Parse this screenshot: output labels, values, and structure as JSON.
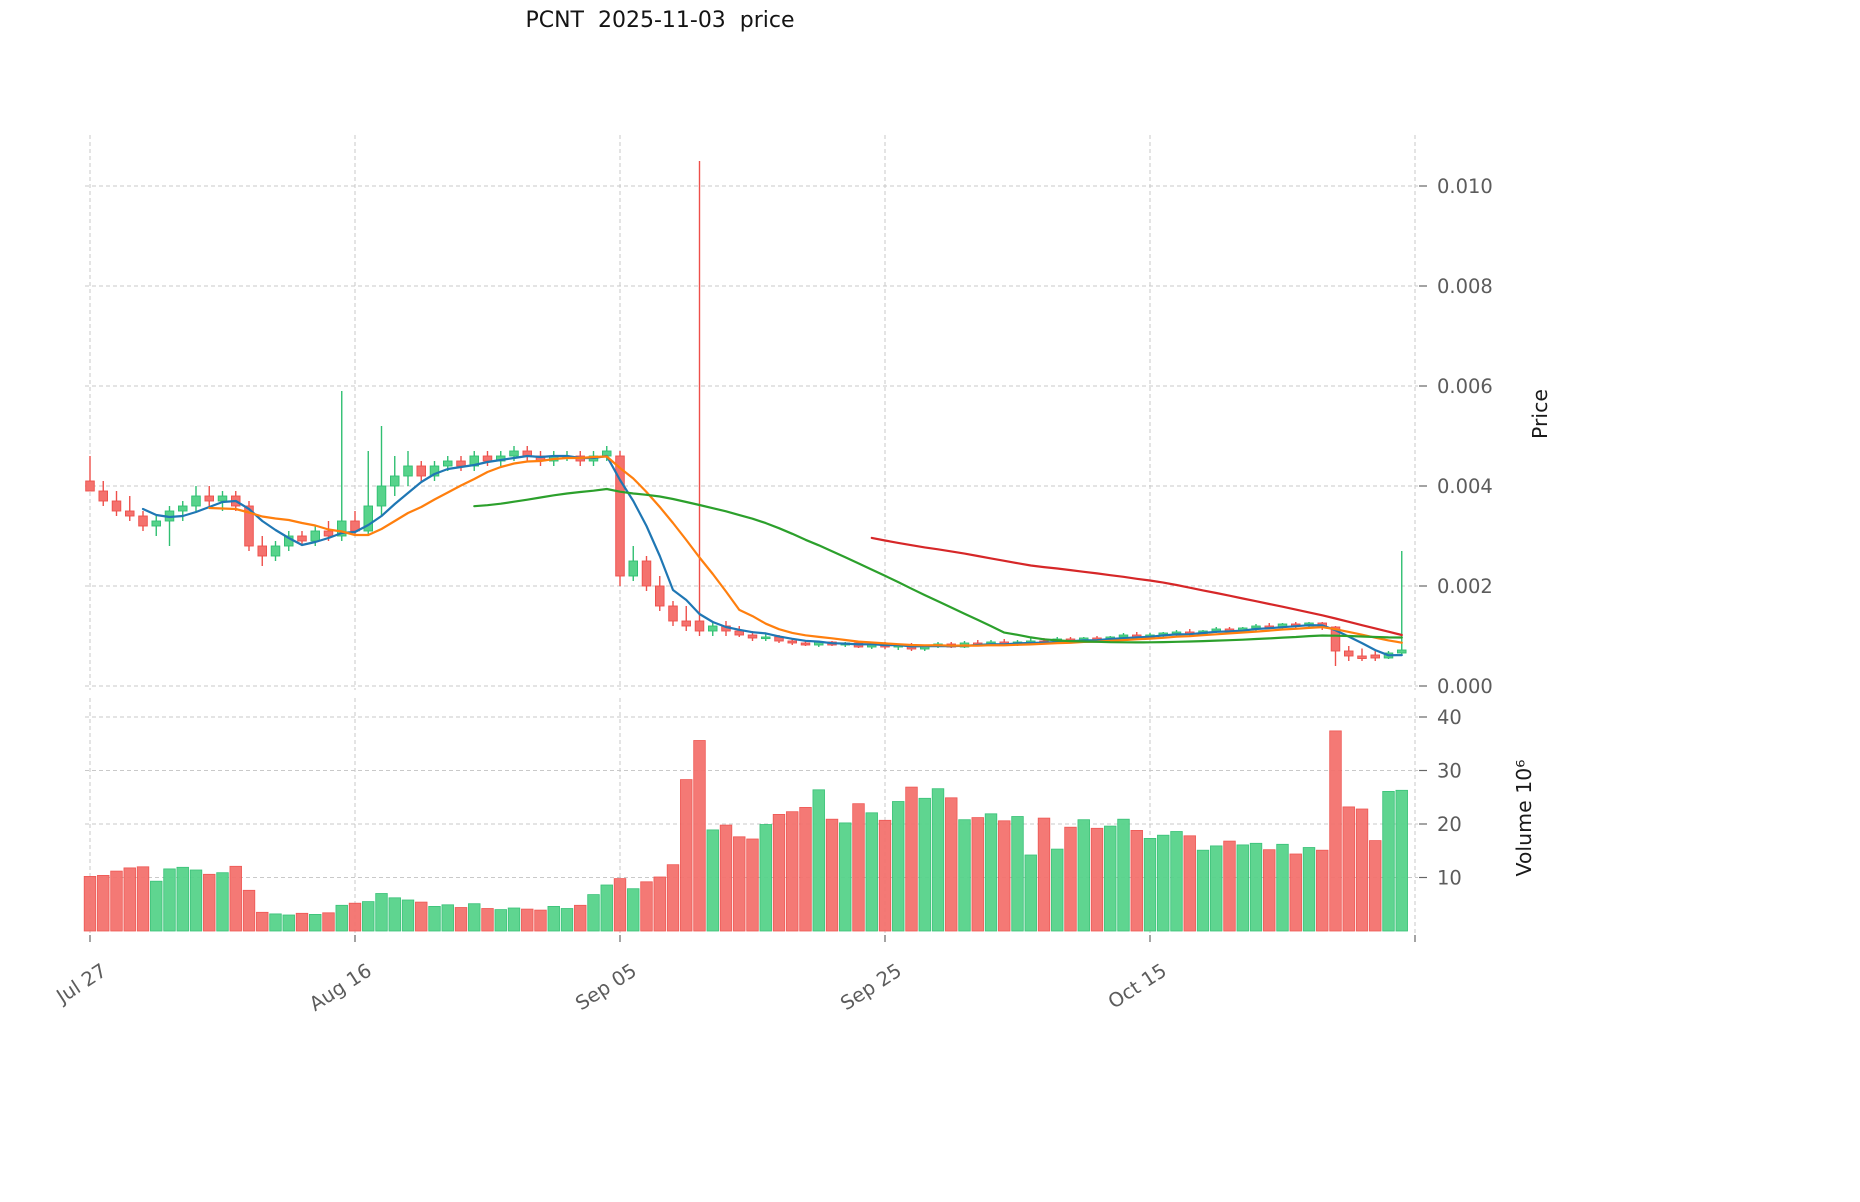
{
  "title": "PCNT  2025-11-03  price",
  "axes": {
    "price_label": "Price",
    "volume_label": "Volume  10⁶"
  },
  "chart_data": {
    "type": "candlestick",
    "title": "PCNT  2025-11-03  price",
    "grid": true,
    "legend": "none",
    "right_axis_labels": [
      "Price",
      "Volume 10^6"
    ],
    "x_ticks": [
      {
        "day": 0,
        "label": "Jul 27"
      },
      {
        "day": 20,
        "label": "Aug 16"
      },
      {
        "day": 40,
        "label": "Sep 05"
      },
      {
        "day": 60,
        "label": "Sep 25"
      },
      {
        "day": 80,
        "label": "Oct 15"
      },
      {
        "day": 100,
        "label": ""
      }
    ],
    "price_ticks": [
      0.0,
      0.002,
      0.004,
      0.006,
      0.008,
      0.01
    ],
    "price_ylim": [
      -0.0002,
      0.0111
    ],
    "volume_ticks": [
      10,
      20,
      30,
      40
    ],
    "volume_ylim": [
      0,
      43
    ],
    "colors": {
      "up": "#57d38b",
      "up_edge": "#2fbf71",
      "down": "#f4726e",
      "down_edge": "#ee4f4a"
    },
    "moving_averages": [
      {
        "window": 5,
        "color": "#1f77b4"
      },
      {
        "window": 10,
        "color": "#ff7f0e"
      },
      {
        "window": 30,
        "color": "#2ca02c"
      },
      {
        "window": 60,
        "color": "#d62728"
      }
    ],
    "columns": [
      "open",
      "high",
      "low",
      "close",
      "volume_millions"
    ],
    "ohlcv": [
      [
        0.0041,
        0.0046,
        0.0039,
        0.0039,
        10.2
      ],
      [
        0.0039,
        0.0041,
        0.0036,
        0.0037,
        10.4
      ],
      [
        0.0037,
        0.0039,
        0.0034,
        0.0035,
        11.2
      ],
      [
        0.0035,
        0.0038,
        0.0033,
        0.0034,
        11.8
      ],
      [
        0.0034,
        0.0035,
        0.0031,
        0.0032,
        12.0
      ],
      [
        0.0032,
        0.0034,
        0.003,
        0.0033,
        9.3
      ],
      [
        0.0033,
        0.0036,
        0.0028,
        0.0035,
        11.6
      ],
      [
        0.0035,
        0.0037,
        0.0033,
        0.0036,
        11.9
      ],
      [
        0.0036,
        0.004,
        0.0035,
        0.0038,
        11.4
      ],
      [
        0.0038,
        0.004,
        0.0036,
        0.0037,
        10.6
      ],
      [
        0.0037,
        0.0039,
        0.0035,
        0.0038,
        10.9
      ],
      [
        0.0038,
        0.0039,
        0.0035,
        0.0036,
        12.1
      ],
      [
        0.0036,
        0.0037,
        0.0027,
        0.0028,
        7.6
      ],
      [
        0.0028,
        0.003,
        0.0024,
        0.0026,
        3.5
      ],
      [
        0.0026,
        0.0029,
        0.0025,
        0.0028,
        3.2
      ],
      [
        0.0028,
        0.0031,
        0.0027,
        0.003,
        3.0
      ],
      [
        0.003,
        0.0031,
        0.0028,
        0.0029,
        3.3
      ],
      [
        0.0029,
        0.0032,
        0.0028,
        0.0031,
        3.1
      ],
      [
        0.0031,
        0.0033,
        0.0029,
        0.003,
        3.4
      ],
      [
        0.003,
        0.0059,
        0.0029,
        0.0033,
        4.8
      ],
      [
        0.0033,
        0.0035,
        0.003,
        0.0031,
        5.2
      ],
      [
        0.0031,
        0.0047,
        0.003,
        0.0036,
        5.5
      ],
      [
        0.0036,
        0.0052,
        0.0034,
        0.004,
        7.0
      ],
      [
        0.004,
        0.0046,
        0.0038,
        0.0042,
        6.2
      ],
      [
        0.0042,
        0.0047,
        0.004,
        0.0044,
        5.8
      ],
      [
        0.0044,
        0.0045,
        0.0041,
        0.0042,
        5.4
      ],
      [
        0.0042,
        0.0045,
        0.0041,
        0.0044,
        4.6
      ],
      [
        0.0044,
        0.0046,
        0.0043,
        0.0045,
        4.9
      ],
      [
        0.0045,
        0.0046,
        0.0043,
        0.0044,
        4.4
      ],
      [
        0.0044,
        0.0047,
        0.0043,
        0.0046,
        5.1
      ],
      [
        0.0046,
        0.0047,
        0.0044,
        0.0045,
        4.2
      ],
      [
        0.0045,
        0.0047,
        0.0044,
        0.0046,
        4.0
      ],
      [
        0.0046,
        0.0048,
        0.0045,
        0.0047,
        4.3
      ],
      [
        0.0047,
        0.0048,
        0.0045,
        0.0046,
        4.1
      ],
      [
        0.0046,
        0.0047,
        0.0044,
        0.0045,
        3.9
      ],
      [
        0.0045,
        0.0047,
        0.0044,
        0.0046,
        4.6
      ],
      [
        0.0046,
        0.0047,
        0.0045,
        0.0046,
        4.2
      ],
      [
        0.0046,
        0.0047,
        0.0044,
        0.0045,
        4.8
      ],
      [
        0.0045,
        0.0047,
        0.0044,
        0.0046,
        6.8
      ],
      [
        0.0046,
        0.0048,
        0.0045,
        0.0047,
        8.6
      ],
      [
        0.0046,
        0.0047,
        0.002,
        0.0022,
        9.8
      ],
      [
        0.0022,
        0.0028,
        0.0021,
        0.0025,
        7.9
      ],
      [
        0.0025,
        0.0026,
        0.0019,
        0.002,
        9.2
      ],
      [
        0.002,
        0.0022,
        0.0015,
        0.0016,
        10.1
      ],
      [
        0.0016,
        0.0017,
        0.0012,
        0.0013,
        12.4
      ],
      [
        0.0013,
        0.0016,
        0.0011,
        0.0012,
        28.3
      ],
      [
        0.0013,
        0.0105,
        0.001,
        0.0011,
        35.6
      ],
      [
        0.0011,
        0.0013,
        0.001,
        0.0012,
        18.9
      ],
      [
        0.0012,
        0.0013,
        0.001,
        0.0011,
        19.8
      ],
      [
        0.0011,
        0.0012,
        0.00098,
        0.00102,
        17.6
      ],
      [
        0.00102,
        0.0011,
        0.0009,
        0.00096,
        17.2
      ],
      [
        0.00096,
        0.00104,
        0.0009,
        0.00098,
        19.9
      ],
      [
        0.00098,
        0.00102,
        0.00086,
        0.0009,
        21.8
      ],
      [
        0.0009,
        0.00096,
        0.00082,
        0.00086,
        22.3
      ],
      [
        0.00086,
        0.00092,
        0.0008,
        0.00082,
        23.1
      ],
      [
        0.00082,
        0.0009,
        0.00078,
        0.00088,
        26.4
      ],
      [
        0.00088,
        0.0009,
        0.0008,
        0.00082,
        20.9
      ],
      [
        0.00082,
        0.00088,
        0.00078,
        0.00086,
        20.2
      ],
      [
        0.00086,
        0.0009,
        0.00076,
        0.00078,
        23.8
      ],
      [
        0.00078,
        0.00086,
        0.00074,
        0.00084,
        22.1
      ],
      [
        0.00084,
        0.00088,
        0.00074,
        0.00078,
        20.7
      ],
      [
        0.00078,
        0.00084,
        0.00072,
        0.00082,
        24.2
      ],
      [
        0.00082,
        0.00086,
        0.0007,
        0.00074,
        26.9
      ],
      [
        0.00074,
        0.00082,
        0.0007,
        0.0008,
        24.8
      ],
      [
        0.0008,
        0.00088,
        0.00076,
        0.00084,
        26.6
      ],
      [
        0.00084,
        0.00088,
        0.00076,
        0.00078,
        24.9
      ],
      [
        0.00078,
        0.0009,
        0.00076,
        0.00086,
        20.8
      ],
      [
        0.00086,
        0.00092,
        0.0008,
        0.00082,
        21.2
      ],
      [
        0.00082,
        0.00092,
        0.0008,
        0.00088,
        21.9
      ],
      [
        0.00088,
        0.00094,
        0.0008,
        0.00082,
        20.6
      ],
      [
        0.00082,
        0.00092,
        0.0008,
        0.00088,
        21.4
      ],
      [
        0.00088,
        0.00096,
        0.00082,
        0.0009,
        14.2
      ],
      [
        0.0009,
        0.00096,
        0.00084,
        0.00086,
        21.1
      ],
      [
        0.00086,
        0.00098,
        0.00084,
        0.00094,
        15.3
      ],
      [
        0.00094,
        0.00098,
        0.00086,
        0.0009,
        19.4
      ],
      [
        0.0009,
        0.00098,
        0.00088,
        0.00096,
        20.8
      ],
      [
        0.00096,
        0.001,
        0.0009,
        0.00092,
        19.2
      ],
      [
        0.00092,
        0.001,
        0.0009,
        0.00098,
        19.6
      ],
      [
        0.00098,
        0.00106,
        0.00094,
        0.00102,
        20.9
      ],
      [
        0.00102,
        0.00108,
        0.00094,
        0.00098,
        18.8
      ],
      [
        0.00098,
        0.00106,
        0.00096,
        0.00102,
        17.3
      ],
      [
        0.00102,
        0.00108,
        0.00098,
        0.00106,
        17.9
      ],
      [
        0.00106,
        0.00112,
        0.001,
        0.00108,
        18.6
      ],
      [
        0.00108,
        0.00114,
        0.001,
        0.00104,
        17.8
      ],
      [
        0.00104,
        0.00112,
        0.001,
        0.0011,
        15.1
      ],
      [
        0.0011,
        0.00118,
        0.00106,
        0.00114,
        15.9
      ],
      [
        0.00114,
        0.00118,
        0.00108,
        0.0011,
        16.8
      ],
      [
        0.0011,
        0.00118,
        0.00108,
        0.00116,
        16.1
      ],
      [
        0.00116,
        0.00124,
        0.0011,
        0.0012,
        16.4
      ],
      [
        0.0012,
        0.00126,
        0.00114,
        0.00118,
        15.2
      ],
      [
        0.00118,
        0.00126,
        0.00114,
        0.00124,
        16.2
      ],
      [
        0.00124,
        0.00128,
        0.00116,
        0.0012,
        14.4
      ],
      [
        0.0012,
        0.00128,
        0.00116,
        0.00126,
        15.6
      ],
      [
        0.00126,
        0.00128,
        0.00112,
        0.00118,
        15.1
      ],
      [
        0.00118,
        0.0012,
        0.0004,
        0.0007,
        37.4
      ],
      [
        0.0007,
        0.0008,
        0.0005,
        0.0006,
        23.2
      ],
      [
        0.0006,
        0.00075,
        0.0005,
        0.00055,
        22.8
      ],
      [
        0.00062,
        0.0007,
        0.0005,
        0.00056,
        16.9
      ],
      [
        0.00056,
        0.0007,
        0.00054,
        0.00066,
        26.1
      ],
      [
        0.00066,
        0.0027,
        0.0006,
        0.00072,
        26.3
      ]
    ]
  }
}
